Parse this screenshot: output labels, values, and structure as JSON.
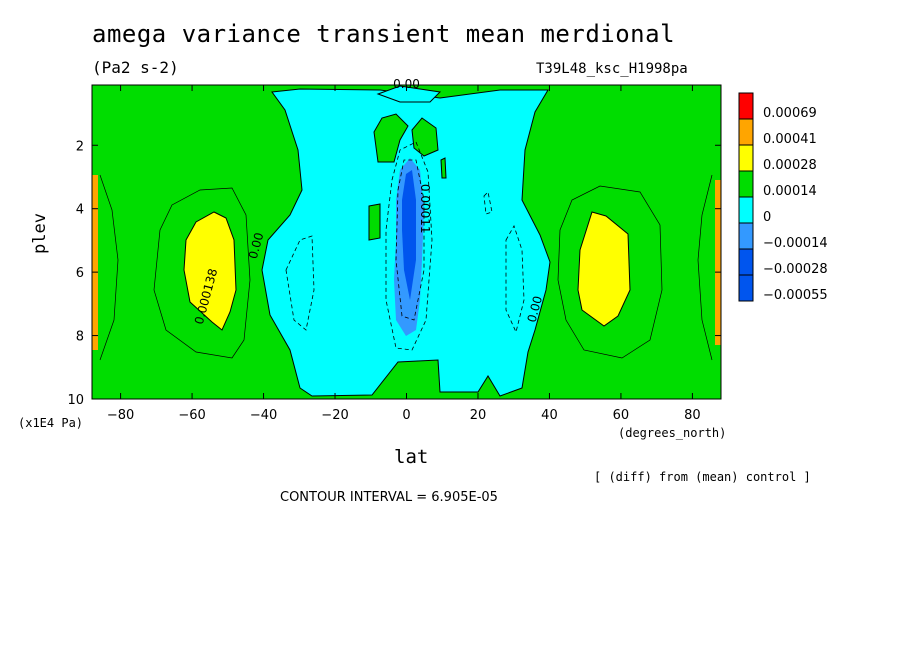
{
  "title": "amega variance transient mean merdional",
  "units": "(Pa2 s-2)",
  "run_id": "T39L48_ksc_H1998pa",
  "note": "[ (diff) from (mean) control ]",
  "contour_interval": "CONTOUR INTERVAL = 6.905E-05",
  "chart_data": {
    "type": "heatmap",
    "title": "amega variance transient mean merdional",
    "xlabel": "lat",
    "x_units": "(degrees_north)",
    "ylabel": "plev",
    "y_units": "(x1E4 Pa)",
    "xlim": [
      -88,
      88
    ],
    "ylim": [
      10,
      0.1
    ],
    "x_ticks": [
      -80,
      -60,
      -40,
      -20,
      0,
      20,
      40,
      60,
      80
    ],
    "y_ticks": [
      2,
      4,
      6,
      8,
      10
    ],
    "contour_interval": 6.905e-05,
    "colorbar": [
      {
        "label": "0.00069",
        "color": "#ff0000"
      },
      {
        "label": "0.00041",
        "color": "#ffa500"
      },
      {
        "label": "0.00028",
        "color": "#ffff00"
      },
      {
        "label": "0.00014",
        "color": "#00dd00"
      },
      {
        "label": "0",
        "color": "#00ffff"
      },
      {
        "label": "-0.00014",
        "color": "#3399ff"
      },
      {
        "label": "-0.00028",
        "color": "#0055ee"
      },
      {
        "label": "-0.00055",
        "color": ""
      }
    ],
    "contour_labels": [
      {
        "text": "0.00",
        "lat": 0,
        "plev": 0.2
      },
      {
        "text": "0.00011",
        "lat": 4,
        "plev": 4.0
      },
      {
        "text": "0.000138",
        "lat": -55,
        "plev": 6.8
      },
      {
        "text": "0.00",
        "lat": -41,
        "plev": 5.2
      },
      {
        "text": "0.00",
        "lat": 37,
        "plev": 7.2
      }
    ]
  }
}
